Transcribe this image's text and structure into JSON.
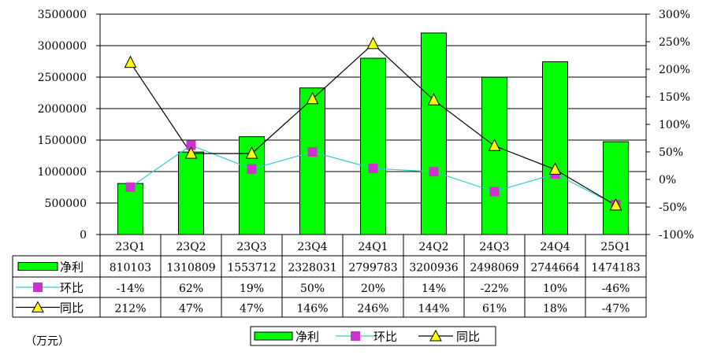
{
  "chart_data": {
    "type": "bar",
    "categories": [
      "23Q1",
      "23Q2",
      "23Q3",
      "23Q4",
      "24Q1",
      "24Q2",
      "24Q3",
      "24Q4",
      "25Q1"
    ],
    "series": [
      {
        "name": "净利",
        "type": "bar",
        "axis": "left",
        "color": "#00ff00",
        "values": [
          810103,
          1310809,
          1553712,
          2328031,
          2799783,
          3200936,
          2498069,
          2744664,
          1474183
        ],
        "labels": [
          "810103",
          "1310809",
          "1553712",
          "2328031",
          "2799783",
          "3200936",
          "2498069",
          "2744664",
          "1474183"
        ]
      },
      {
        "name": "环比",
        "type": "line",
        "axis": "right",
        "color": "#33cccc",
        "marker": "square",
        "marker_color": "#cc33cc",
        "values": [
          -14,
          62,
          19,
          50,
          20,
          14,
          -22,
          10,
          -46
        ],
        "labels": [
          "-14%",
          "62%",
          "19%",
          "50%",
          "20%",
          "14%",
          "-22%",
          "10%",
          "-46%"
        ]
      },
      {
        "name": "同比",
        "type": "line",
        "axis": "right",
        "color": "#000000",
        "marker": "triangle",
        "marker_color": "#ffff00",
        "values": [
          212,
          47,
          47,
          146,
          246,
          144,
          61,
          18,
          -47
        ],
        "labels": [
          "212%",
          "47%",
          "47%",
          "146%",
          "246%",
          "144%",
          "61%",
          "18%",
          "-47%"
        ]
      }
    ],
    "y_left": {
      "min": 0,
      "max": 3500000,
      "step": 500000,
      "ticks": [
        "0",
        "500000",
        "1000000",
        "1500000",
        "2000000",
        "2500000",
        "3000000",
        "3500000"
      ]
    },
    "y_right": {
      "min": -100,
      "max": 300,
      "step": 50,
      "ticks": [
        "-100%",
        "-50%",
        "0%",
        "50%",
        "100%",
        "150%",
        "200%",
        "250%",
        "300%"
      ]
    },
    "unit_label": "（万元）",
    "grid": true,
    "legend_position": "bottom",
    "data_table": true
  }
}
